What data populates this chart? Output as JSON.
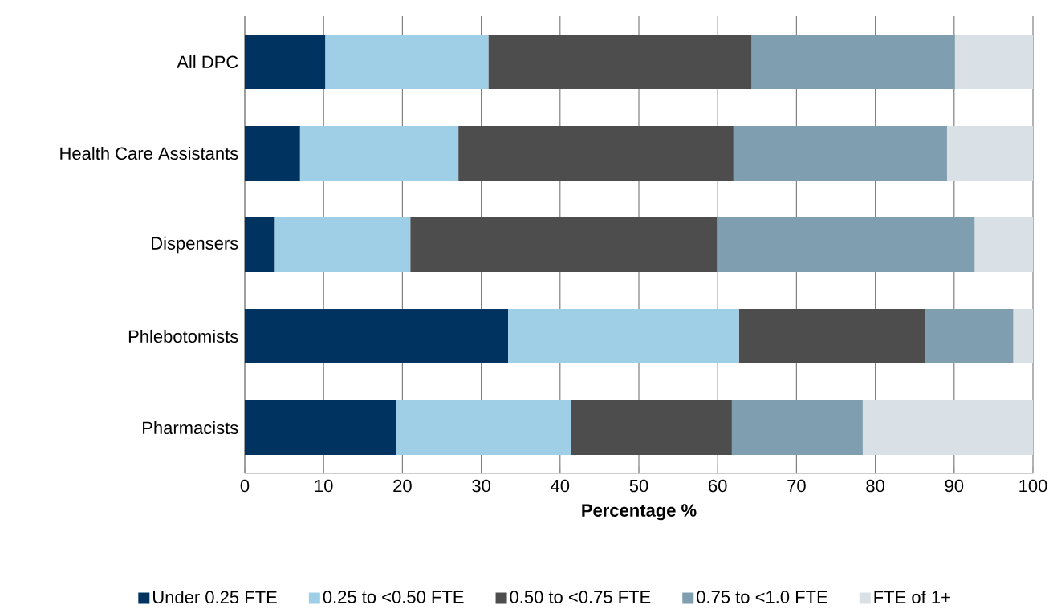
{
  "chart_data": {
    "type": "bar",
    "orientation": "horizontal",
    "stacked": true,
    "categories": [
      "All DPC",
      "Health Care Assistants",
      "Dispensers",
      "Phlebotomists",
      "Pharmacists"
    ],
    "series": [
      {
        "name": "Under 0.25 FTE",
        "color": "#00335f",
        "values": [
          10.2,
          7.0,
          3.8,
          33.4,
          19.2
        ]
      },
      {
        "name": "0.25 to <0.50 FTE",
        "color": "#9fcfe6",
        "values": [
          20.7,
          20.1,
          17.2,
          29.3,
          22.2
        ]
      },
      {
        "name": "0.50 to <0.75 FTE",
        "color": "#4d4d4d",
        "values": [
          33.4,
          34.9,
          38.9,
          23.6,
          20.4
        ]
      },
      {
        "name": "0.75 to <1.0 FTE",
        "color": "#7f9fb0",
        "values": [
          25.8,
          27.1,
          32.7,
          11.2,
          16.6
        ]
      },
      {
        "name": "FTE of 1+",
        "color": "#d9e0e6",
        "values": [
          9.9,
          10.9,
          7.4,
          2.5,
          21.6
        ]
      }
    ],
    "xlim": [
      0,
      100
    ],
    "xticks": [
      0,
      10,
      20,
      30,
      40,
      50,
      60,
      70,
      80,
      90,
      100
    ],
    "xlabel": "Percentage %",
    "grid": "x",
    "legend": "bottom"
  }
}
